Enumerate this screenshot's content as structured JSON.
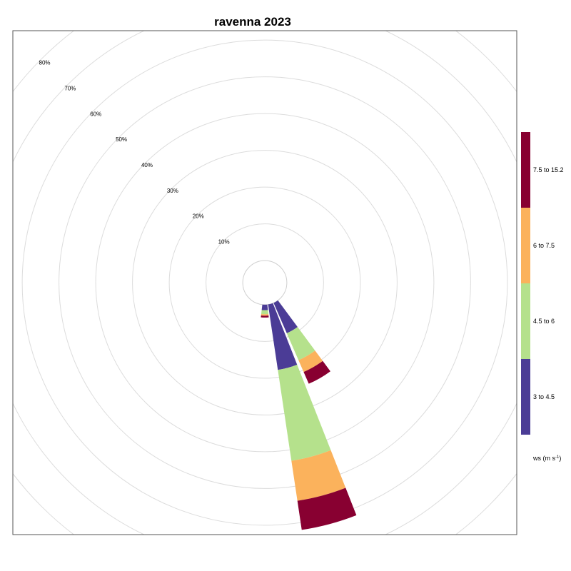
{
  "chart_data": {
    "type": "windrose",
    "title": "ravenna 2023",
    "ring_labels": [
      "10%",
      "20%",
      "30%",
      "40%",
      "50%",
      "60%",
      "70%",
      "80%"
    ],
    "ring_values": [
      10,
      20,
      30,
      40,
      50,
      60,
      70,
      80
    ],
    "offset_percent": 6,
    "legend": {
      "title_main": "ws (m s",
      "title_sup": "-1",
      "title_end": ")",
      "bins": [
        {
          "label": "3 to 4.5",
          "color": "#4B3C96"
        },
        {
          "label": "4.5 to 6",
          "color": "#B5E18C"
        },
        {
          "label": "6 to 7.5",
          "color": "#FBB25C"
        },
        {
          "label": "7.5 to 15.2",
          "color": "#880031"
        }
      ]
    },
    "sectors": [
      {
        "direction": 150,
        "cumulative": [
          9,
          17,
          20.5,
          24
        ]
      },
      {
        "direction": 165,
        "cumulative": [
          18,
          43,
          54,
          62
        ]
      },
      {
        "direction": 180,
        "cumulative": [
          1.5,
          2.6,
          3.0,
          3.5
        ]
      }
    ],
    "grid": true
  }
}
